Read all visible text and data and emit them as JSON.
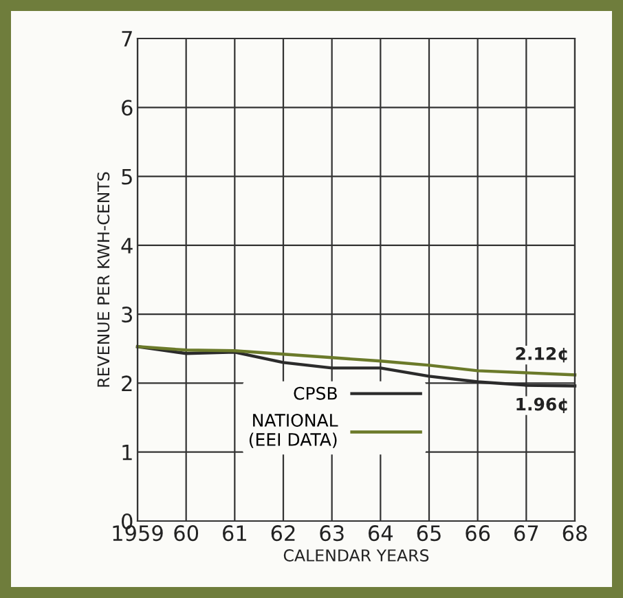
{
  "chart_data": {
    "type": "line",
    "xlabel": "CALENDAR YEARS",
    "ylabel": "REVENUE PER KWH-CENTS",
    "x": [
      1959,
      1960,
      1961,
      1962,
      1963,
      1964,
      1965,
      1966,
      1967,
      1968
    ],
    "series": [
      {
        "name": "CPSB",
        "color": "#2b2b2b",
        "values": [
          2.53,
          2.43,
          2.45,
          2.3,
          2.22,
          2.22,
          2.1,
          2.02,
          1.97,
          1.96
        ]
      },
      {
        "name": "NATIONAL\n(EEI DATA)",
        "color": "#6b7a2a",
        "values": [
          2.53,
          2.48,
          2.47,
          2.42,
          2.37,
          2.32,
          2.26,
          2.18,
          2.15,
          2.12
        ]
      }
    ],
    "annotations": [
      {
        "text": "2.12¢",
        "x": 1968,
        "y": 2.12
      },
      {
        "text": "1.96¢",
        "x": 1968,
        "y": 1.96
      }
    ],
    "xlim": [
      1959,
      1968
    ],
    "xticks": [
      1959,
      {
        "value": 1960,
        "label": "60"
      },
      {
        "value": 1961,
        "label": "61"
      },
      {
        "value": 1962,
        "label": "62"
      },
      {
        "value": 1963,
        "label": "63"
      },
      {
        "value": 1964,
        "label": "64"
      },
      {
        "value": 1965,
        "label": "65"
      },
      {
        "value": 1966,
        "label": "66"
      },
      {
        "value": 1967,
        "label": "67"
      },
      {
        "value": 1968,
        "label": "68"
      }
    ],
    "ylim": [
      0,
      7
    ],
    "yticks": [
      0,
      1,
      2,
      3,
      4,
      5,
      6,
      7
    ],
    "grid": true,
    "legend": "bottom",
    "marker": "none",
    "line_style": "solid"
  }
}
